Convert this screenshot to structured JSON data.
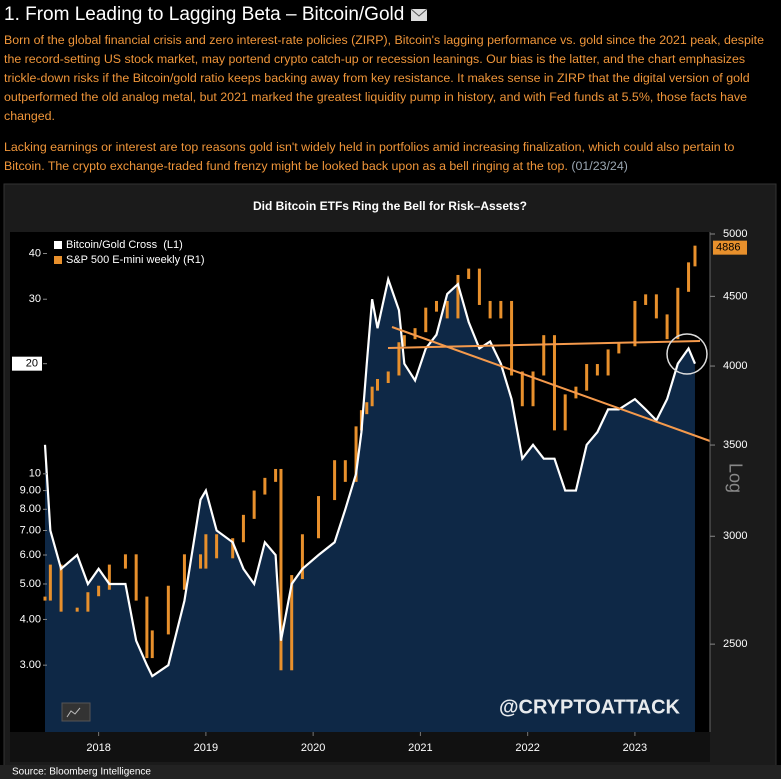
{
  "header": {
    "title": "1. From Leading to Lagging Beta – Bitcoin/Gold",
    "paragraphs": [
      "Born of the global financial crisis and zero interest-rate policies (ZIRP), Bitcoin's lagging performance vs. gold since the 2021 peak, despite the record-setting US stock market, may portend crypto catch-up or recession leanings. Our bias is the latter, and the chart emphasizes trickle-down risks if the Bitcoin/gold ratio keeps backing away from key resistance. It makes sense in ZIRP that the digital version of gold outperformed the old analog metal, but 2021 marked the greatest liquidity pump in history, and with Fed funds at 5.5%, those facts have changed.",
      "Lacking earnings or interest are top reasons gold isn't widely held in portfolios amid increasing finalization, which could also pertain to Bitcoin. The crypto exchange-traded fund frenzy might be looked back upon as a bell ringing at the top."
    ],
    "date": "(01/23/24)"
  },
  "chart_data": {
    "type": "line",
    "title": "Did Bitcoin ETFs Ring the Bell for Risk–Assets?",
    "log_scale": true,
    "right_axis_label": "Log",
    "watermark": "@CRYPTOATTACK",
    "source": "Source: Bloomberg Intelligence",
    "legend": "upper left",
    "x": [
      2018.0,
      2018.05,
      2018.15,
      2018.3,
      2018.4,
      2018.5,
      2018.6,
      2018.75,
      2018.85,
      2018.95,
      2019.0,
      2019.15,
      2019.3,
      2019.45,
      2019.5,
      2019.6,
      2019.75,
      2019.85,
      2019.95,
      2020.05,
      2020.15,
      2020.2,
      2020.3,
      2020.4,
      2020.55,
      2020.7,
      2020.8,
      2020.9,
      2020.95,
      2021.0,
      2021.05,
      2021.1,
      2021.2,
      2021.3,
      2021.35,
      2021.45,
      2021.55,
      2021.65,
      2021.75,
      2021.85,
      2021.95,
      2022.05,
      2022.15,
      2022.25,
      2022.35,
      2022.45,
      2022.55,
      2022.65,
      2022.75,
      2022.85,
      2022.95,
      2023.05,
      2023.15,
      2023.25,
      2023.35,
      2023.5,
      2023.6,
      2023.7,
      2023.8,
      2023.9,
      2024.0,
      2024.06
    ],
    "xlim": [
      2018.0,
      2024.2
    ],
    "xticks": [
      {
        "value": 2018.5,
        "label": "2018"
      },
      {
        "value": 2019.5,
        "label": "2019"
      },
      {
        "value": 2020.5,
        "label": "2020"
      },
      {
        "value": 2021.5,
        "label": "2021"
      },
      {
        "value": 2022.5,
        "label": "2022"
      },
      {
        "value": 2023.5,
        "label": "2023"
      }
    ],
    "ylim": [
      1.97,
      45.8
    ],
    "yticks": [
      {
        "value": 3,
        "label": "3.00"
      },
      {
        "value": 4,
        "label": "4.00"
      },
      {
        "value": 5,
        "label": "5.00"
      },
      {
        "value": 6,
        "label": "6.00"
      },
      {
        "value": 7,
        "label": "7.00"
      },
      {
        "value": 8,
        "label": "8.00"
      },
      {
        "value": 9,
        "label": "9.00"
      },
      10,
      20,
      30,
      40
    ],
    "y2lim": [
      2155,
      5017
    ],
    "y2ticks": [
      2500,
      3000,
      3500,
      4000,
      4500,
      5000
    ],
    "series": [
      {
        "name": "Bitcoin/Gold Cross  (L1)",
        "color": "#ffffff",
        "area_color": "#0e2846",
        "values": [
          12,
          7,
          5.5,
          6,
          5,
          5.5,
          5,
          5,
          3.5,
          3,
          2.8,
          3,
          4.5,
          8.5,
          9,
          7,
          6.5,
          5.5,
          5,
          6.5,
          6,
          3.5,
          5,
          5.5,
          6,
          6.5,
          8,
          10,
          13,
          20,
          30,
          25,
          34,
          28,
          20,
          18,
          22,
          24,
          31,
          33,
          26,
          22,
          23,
          20,
          16,
          11,
          12,
          11,
          11,
          9,
          9,
          12,
          13,
          15,
          15,
          16,
          15,
          14,
          16,
          20,
          22,
          20
        ]
      },
      {
        "name": "S&P 500 E-mini weekly (R1)",
        "color": "#e8902c",
        "axis": "y2",
        "values": [
          2700,
          2850,
          2650,
          2650,
          2720,
          2750,
          2850,
          2900,
          2700,
          2450,
          2550,
          2750,
          2900,
          2850,
          3000,
          2900,
          2980,
          3100,
          3230,
          3300,
          3350,
          2400,
          2800,
          3000,
          3200,
          3400,
          3300,
          3600,
          3700,
          3750,
          3850,
          3900,
          3950,
          4150,
          4200,
          4250,
          4400,
          4450,
          4350,
          4650,
          4700,
          4450,
          4350,
          4450,
          3950,
          3750,
          3950,
          4200,
          3600,
          3800,
          3850,
          4000,
          3950,
          4100,
          4150,
          4450,
          4500,
          4350,
          4200,
          4550,
          4750,
          4886
        ]
      }
    ]
  }
}
